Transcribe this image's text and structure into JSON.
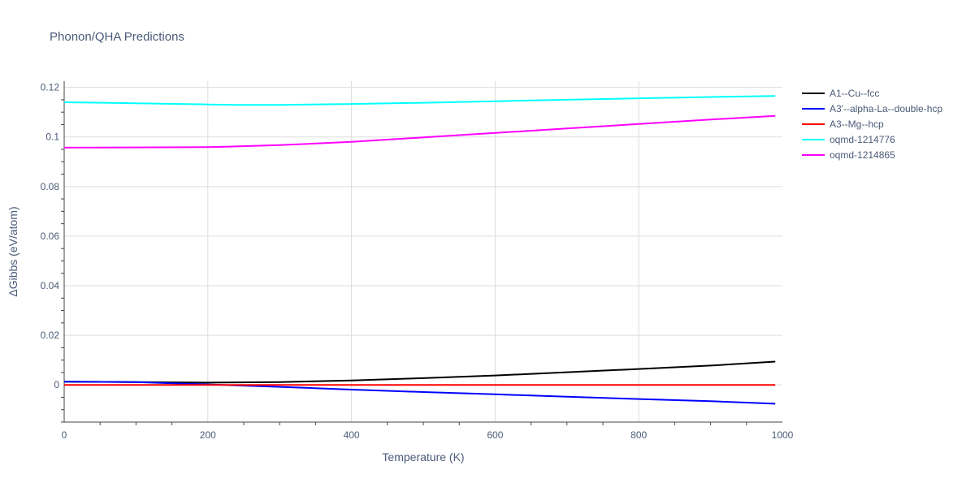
{
  "chart_data": {
    "type": "line",
    "title": "Phonon/QHA Predictions",
    "xlabel": "Temperature (K)",
    "ylabel": "ΔGibbs (eV/atom)",
    "xlim": [
      0,
      1000
    ],
    "ylim": [
      -0.015,
      0.1225
    ],
    "x_ticks": [
      0,
      200,
      400,
      600,
      800,
      1000
    ],
    "x_tick_labels": [
      "0",
      "200",
      "400",
      "600",
      "800",
      "1000"
    ],
    "y_ticks": [
      0,
      0.02,
      0.04,
      0.06,
      0.08,
      0.1,
      0.12
    ],
    "y_tick_labels": [
      "0",
      "0.02",
      "0.04",
      "0.06",
      "0.08",
      "0.1",
      "0.12"
    ],
    "grid": true,
    "legend_position": "right",
    "series": [
      {
        "name": "A1--Cu--fcc",
        "color": "#000000",
        "x": [
          0,
          100,
          200,
          300,
          400,
          500,
          600,
          700,
          800,
          900,
          990
        ],
        "y": [
          0.0013,
          0.0011,
          0.0009,
          0.0011,
          0.0018,
          0.0027,
          0.0038,
          0.0051,
          0.0064,
          0.0078,
          0.0094
        ]
      },
      {
        "name": "A3'--alpha-La--double-hcp",
        "color": "#0000ff",
        "x": [
          0,
          100,
          200,
          300,
          400,
          500,
          600,
          700,
          800,
          900,
          990
        ],
        "y": [
          0.0013,
          0.0011,
          0.0002,
          -0.0008,
          -0.0019,
          -0.0029,
          -0.0038,
          -0.0048,
          -0.0057,
          -0.0066,
          -0.0076
        ]
      },
      {
        "name": "A3--Mg--hcp",
        "color": "#ff0000",
        "x": [
          0,
          100,
          200,
          300,
          400,
          500,
          600,
          700,
          800,
          900,
          990
        ],
        "y": [
          0,
          0,
          0,
          0,
          0,
          0,
          0,
          0,
          0,
          0,
          0
        ]
      },
      {
        "name": "oqmd-1214776",
        "color": "#00ffff",
        "x": [
          0,
          100,
          200,
          240,
          300,
          400,
          500,
          600,
          700,
          800,
          900,
          990
        ],
        "y": [
          0.114,
          0.1136,
          0.1131,
          0.1129,
          0.1129,
          0.1133,
          0.1138,
          0.1144,
          0.115,
          0.1156,
          0.1161,
          0.1165
        ]
      },
      {
        "name": "oqmd-1214865",
        "color": "#ff00ff",
        "x": [
          0,
          100,
          200,
          220,
          300,
          400,
          500,
          600,
          700,
          800,
          900,
          990
        ],
        "y": [
          0.0957,
          0.0958,
          0.0959,
          0.096,
          0.0967,
          0.098,
          0.0998,
          0.1016,
          0.1034,
          0.1052,
          0.107,
          0.1085
        ]
      }
    ]
  }
}
